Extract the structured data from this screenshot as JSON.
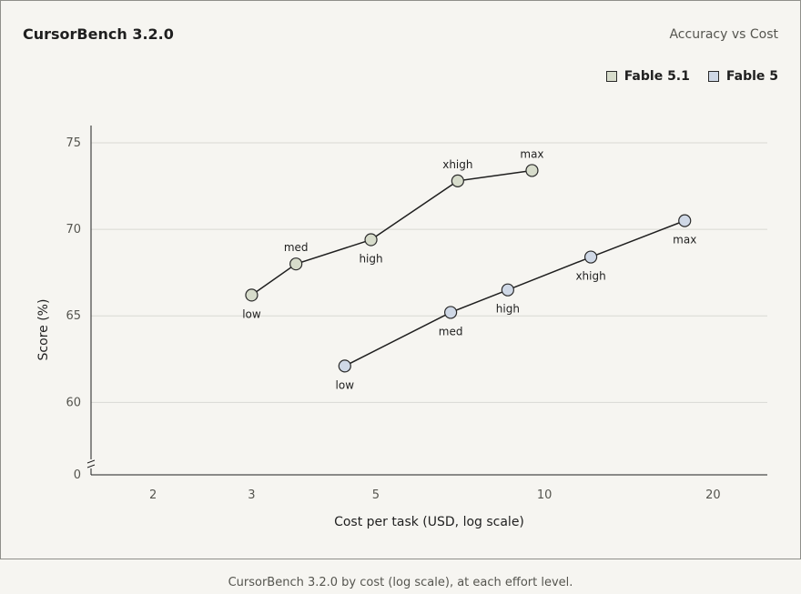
{
  "header": {
    "title": "CursorBench 3.2.0",
    "subtitle": "Accuracy vs Cost"
  },
  "caption": "CursorBench 3.2.0 by cost (log scale), at each effort level.",
  "colors": {
    "fable_5_1": "#d7dccb",
    "fable_5": "#cfd8e6",
    "line": "#1f1f1f",
    "grid": "#d9d9d4",
    "background": "#f6f5f1"
  },
  "chart_data": {
    "type": "scatter",
    "xlabel": "Cost per task (USD, log scale)",
    "ylabel": "Score (%)",
    "x_scale": "log",
    "xlim": [
      1.55,
      25
    ],
    "x_ticks": [
      2,
      3,
      5,
      10,
      20
    ],
    "y_ticks": [
      60,
      65,
      70,
      75
    ],
    "y_axis_break": true,
    "y_zero_label": "0",
    "ylim": [
      56.6,
      76
    ],
    "grid": "horizontal",
    "legend": "top-right",
    "series": [
      {
        "name": "Fable 5.1",
        "points": [
          {
            "label": "low",
            "x": 3.0,
            "y": 66.2
          },
          {
            "label": "med",
            "x": 3.6,
            "y": 68.0
          },
          {
            "label": "high",
            "x": 4.9,
            "y": 69.4
          },
          {
            "label": "xhigh",
            "x": 7.0,
            "y": 72.8
          },
          {
            "label": "max",
            "x": 9.5,
            "y": 73.4
          }
        ]
      },
      {
        "name": "Fable 5",
        "points": [
          {
            "label": "low",
            "x": 4.4,
            "y": 62.1
          },
          {
            "label": "med",
            "x": 6.8,
            "y": 65.2
          },
          {
            "label": "high",
            "x": 8.6,
            "y": 66.5
          },
          {
            "label": "xhigh",
            "x": 12.1,
            "y": 68.4
          },
          {
            "label": "max",
            "x": 17.8,
            "y": 70.5
          }
        ]
      }
    ]
  }
}
